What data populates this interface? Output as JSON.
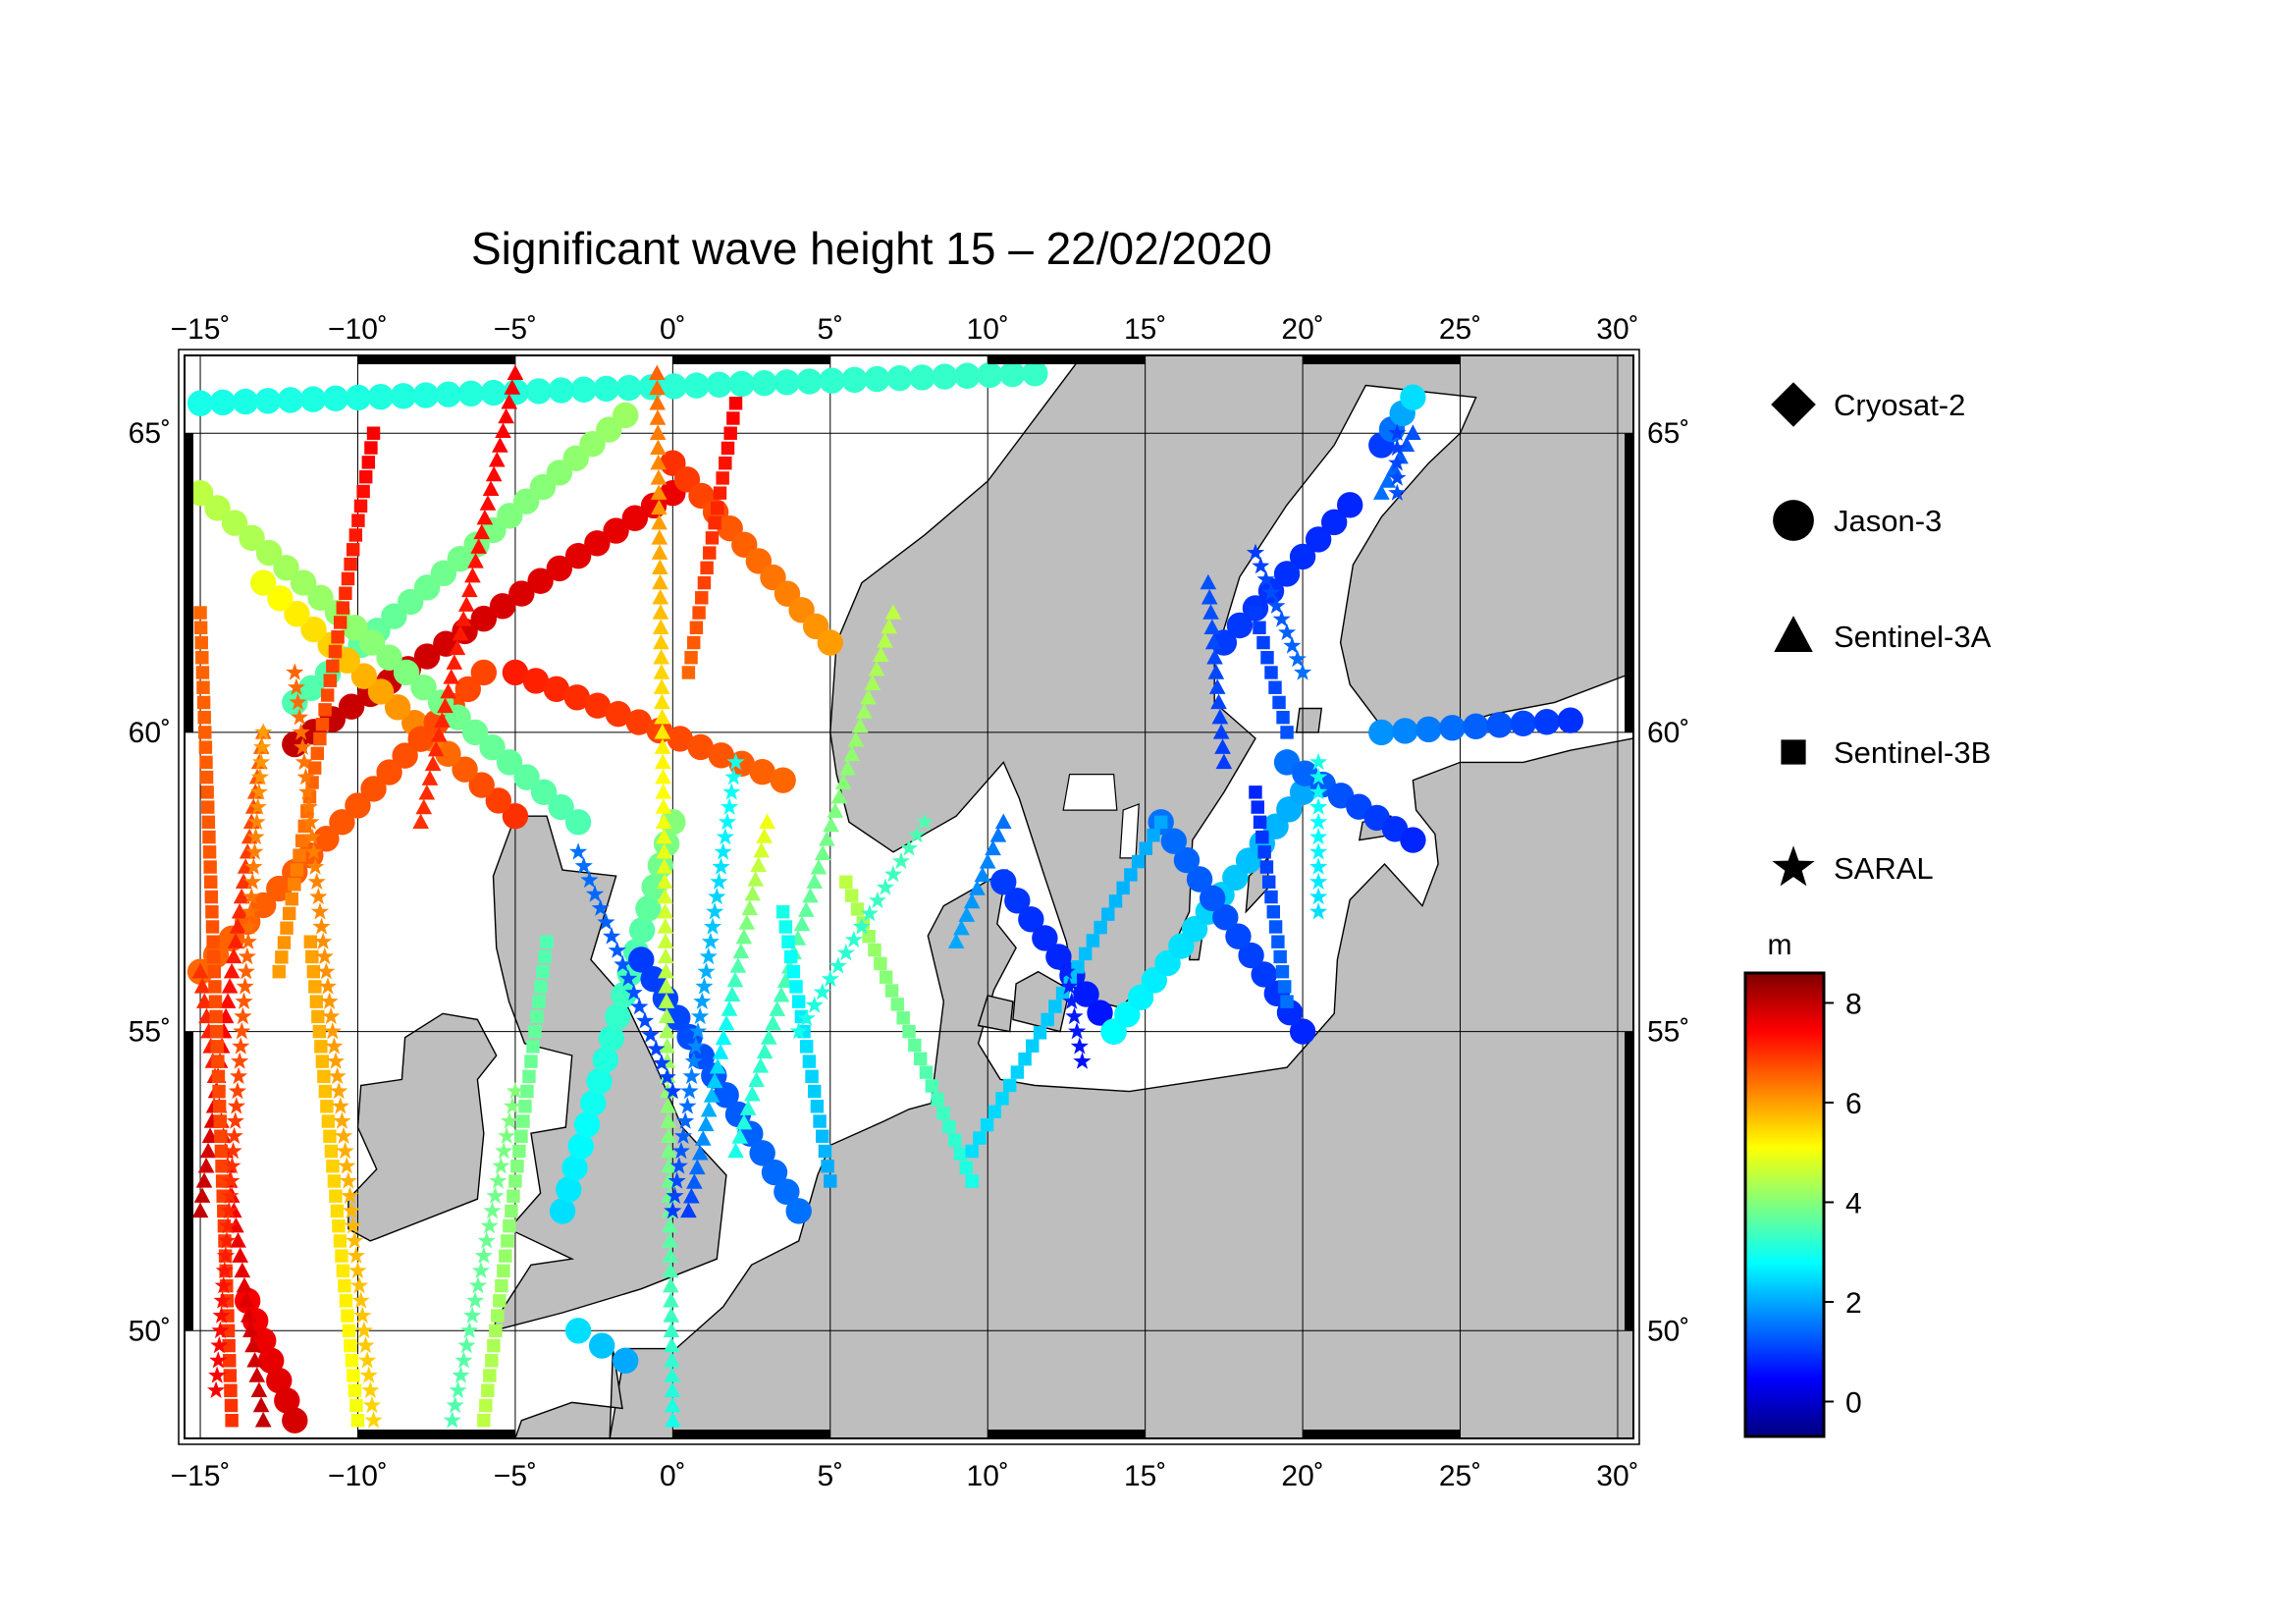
{
  "title": "Significant wave height 15 – 22/02/2020",
  "map": {
    "lon_range": [
      -15.5,
      30.5
    ],
    "lat_range": [
      48.2,
      66.3
    ],
    "lon_ticks": [
      -15,
      -10,
      -5,
      0,
      5,
      10,
      15,
      20,
      25,
      30
    ],
    "lat_ticks": [
      50,
      55,
      60,
      65
    ],
    "lon_tick_labels": [
      "−15˚",
      "−10˚",
      "−5˚",
      "0˚",
      "5˚",
      "10˚",
      "15˚",
      "20˚",
      "25˚",
      "30˚"
    ],
    "lat_tick_labels": [
      "50˚",
      "55˚",
      "60˚",
      "65˚"
    ],
    "land_color": "#bebebe",
    "sea_color": "#ffffff",
    "grid": true
  },
  "legend": {
    "satellites": [
      {
        "name": "Cryosat-2",
        "icon": "diamond-icon"
      },
      {
        "name": "Jason-3",
        "icon": "circle-icon"
      },
      {
        "name": "Sentinel-3A",
        "icon": "triangle-icon"
      },
      {
        "name": "Sentinel-3B",
        "icon": "square-icon"
      },
      {
        "name": "SARAL",
        "icon": "star-icon"
      }
    ]
  },
  "colorbar": {
    "unit": "m",
    "min": -0.7,
    "max": 8.6,
    "ticks": [
      0,
      2,
      4,
      6,
      8
    ],
    "tick_labels": [
      "0",
      "2",
      "4",
      "6",
      "8"
    ],
    "colormap": [
      "#00007f",
      "#0000ff",
      "#007fff",
      "#00ffff",
      "#7fff7f",
      "#ffff00",
      "#ff7f00",
      "#ff0000",
      "#7f0000"
    ]
  },
  "chart_data": {
    "type": "scatter",
    "title": "Significant wave height 15 – 22/02/2020",
    "xlabel": "",
    "ylabel": "",
    "xlim": [
      -15.5,
      30.5
    ],
    "ylim": [
      48.2,
      66.3
    ],
    "color_unit": "m",
    "series": [
      {
        "name": "Jason-3",
        "marker": "circle",
        "tracks": [
          {
            "from": [
              -12.0,
              59.8
            ],
            "to": [
              0.0,
              64.0
            ],
            "hs": [
              8.0,
              7.6
            ]
          },
          {
            "from": [
              -12.0,
              60.5
            ],
            "to": [
              -1.5,
              65.3
            ],
            "hs": [
              3.5,
              4.2
            ]
          },
          {
            "from": [
              -5.0,
              58.6
            ],
            "to": [
              -13.0,
              62.5
            ],
            "hs": [
              7.0,
              5.0
            ]
          },
          {
            "from": [
              -15.0,
              56.0
            ],
            "to": [
              -6.0,
              61.0
            ],
            "hs": [
              6.5,
              6.8
            ]
          },
          {
            "from": [
              -13.5,
              50.5
            ],
            "to": [
              -12.0,
              48.5
            ],
            "hs": [
              7.5,
              7.8
            ]
          },
          {
            "from": [
              -15.0,
              64.0
            ],
            "to": [
              -3.0,
              58.5
            ],
            "hs": [
              4.5,
              3.5
            ]
          },
          {
            "from": [
              -5.0,
              61.0
            ],
            "to": [
              3.5,
              59.2
            ],
            "hs": [
              7.2,
              6.5
            ]
          },
          {
            "from": [
              -3.5,
              52.0
            ],
            "to": [
              0.0,
              58.5
            ],
            "hs": [
              2.5,
              4.0
            ]
          },
          {
            "from": [
              -3.0,
              50.0
            ],
            "to": [
              -1.5,
              49.5
            ],
            "hs": [
              2.5,
              2.0
            ]
          },
          {
            "from": [
              -1.0,
              56.2
            ],
            "to": [
              4.0,
              52.0
            ],
            "hs": [
              1.0,
              1.5
            ]
          },
          {
            "from": [
              0.0,
              64.5
            ],
            "to": [
              5.0,
              61.5
            ],
            "hs": [
              7.0,
              6.0
            ]
          },
          {
            "from": [
              10.5,
              57.5
            ],
            "to": [
              14.0,
              55.0
            ],
            "hs": [
              1.0,
              0.6
            ]
          },
          {
            "from": [
              14.0,
              55.0
            ],
            "to": [
              20.0,
              59.0
            ],
            "hs": [
              2.8,
              2.0
            ]
          },
          {
            "from": [
              20.0,
              55.0
            ],
            "to": [
              15.5,
              58.5
            ],
            "hs": [
              0.8,
              1.5
            ]
          },
          {
            "from": [
              17.5,
              61.5
            ],
            "to": [
              21.5,
              63.8
            ],
            "hs": [
              1.0,
              0.8
            ]
          },
          {
            "from": [
              22.5,
              60.0
            ],
            "to": [
              28.5,
              60.2
            ],
            "hs": [
              1.8,
              0.9
            ]
          },
          {
            "from": [
              19.5,
              59.5
            ],
            "to": [
              23.5,
              58.2
            ],
            "hs": [
              1.5,
              0.8
            ]
          },
          {
            "from": [
              -15.0,
              65.5
            ],
            "to": [
              11.5,
              66.0
            ],
            "hs": [
              3.0,
              3.3
            ]
          },
          {
            "from": [
              22.5,
              64.8
            ],
            "to": [
              23.5,
              65.6
            ],
            "hs": [
              1.0,
              2.5
            ]
          }
        ]
      },
      {
        "name": "Sentinel-3A",
        "marker": "triangle",
        "tracks": [
          {
            "from": [
              -15.0,
              56.0
            ],
            "to": [
              -13.0,
              48.5
            ],
            "hs": [
              7.0,
              8.0
            ]
          },
          {
            "from": [
              -15.0,
              52.0
            ],
            "to": [
              -13.0,
              60.0
            ],
            "hs": [
              8.0,
              6.5
            ]
          },
          {
            "from": [
              -8.0,
              58.5
            ],
            "to": [
              -5.0,
              66.0
            ],
            "hs": [
              7.0,
              7.5
            ]
          },
          {
            "from": [
              0.0,
              48.5
            ],
            "to": [
              -0.5,
              66.0
            ],
            "hs": [
              3.0,
              6.5
            ]
          },
          {
            "from": [
              3.0,
              58.5
            ],
            "to": [
              0.5,
              52.0
            ],
            "hs": [
              5.0,
              1.0
            ]
          },
          {
            "from": [
              2.0,
              53.0
            ],
            "to": [
              7.0,
              62.0
            ],
            "hs": [
              3.0,
              4.5
            ]
          },
          {
            "from": [
              9.0,
              56.5
            ],
            "to": [
              10.5,
              58.5
            ],
            "hs": [
              2.0,
              1.5
            ]
          },
          {
            "from": [
              17.5,
              59.5
            ],
            "to": [
              17.0,
              62.5
            ],
            "hs": [
              1.0,
              1.2
            ]
          },
          {
            "from": [
              22.5,
              64.0
            ],
            "to": [
              23.5,
              65.0
            ],
            "hs": [
              1.5,
              1.2
            ]
          }
        ]
      },
      {
        "name": "Sentinel-3B",
        "marker": "square",
        "tracks": [
          {
            "from": [
              -15.0,
              62.0
            ],
            "to": [
              -14.0,
              48.5
            ],
            "hs": [
              6.5,
              7.0
            ]
          },
          {
            "from": [
              -11.5,
              56.5
            ],
            "to": [
              -10.0,
              48.5
            ],
            "hs": [
              6.0,
              5.0
            ]
          },
          {
            "from": [
              -12.5,
              56.0
            ],
            "to": [
              -9.5,
              65.0
            ],
            "hs": [
              6.0,
              7.5
            ]
          },
          {
            "from": [
              -6.0,
              48.5
            ],
            "to": [
              -4.0,
              56.5
            ],
            "hs": [
              4.5,
              3.5
            ]
          },
          {
            "from": [
              2.0,
              65.5
            ],
            "to": [
              0.5,
              61.0
            ],
            "hs": [
              7.5,
              6.5
            ]
          },
          {
            "from": [
              3.5,
              57.0
            ],
            "to": [
              5.0,
              52.5
            ],
            "hs": [
              3.0,
              2.0
            ]
          },
          {
            "from": [
              5.5,
              57.5
            ],
            "to": [
              9.5,
              52.5
            ],
            "hs": [
              4.5,
              3.0
            ]
          },
          {
            "from": [
              9.5,
              53.0
            ],
            "to": [
              15.5,
              58.5
            ],
            "hs": [
              2.5,
              2.0
            ]
          },
          {
            "from": [
              18.5,
              59.0
            ],
            "to": [
              19.5,
              55.5
            ],
            "hs": [
              0.8,
              1.5
            ]
          },
          {
            "from": [
              18.5,
              62.0
            ],
            "to": [
              19.5,
              60.0
            ],
            "hs": [
              1.0,
              1.2
            ]
          }
        ]
      },
      {
        "name": "SARAL",
        "marker": "star",
        "tracks": [
          {
            "from": [
              -14.5,
              49.0
            ],
            "to": [
              -13.0,
              60.0
            ],
            "hs": [
              7.5,
              6.0
            ]
          },
          {
            "from": [
              -9.5,
              48.5
            ],
            "to": [
              -12.0,
              61.0
            ],
            "hs": [
              5.5,
              6.5
            ]
          },
          {
            "from": [
              -7.0,
              48.5
            ],
            "to": [
              -5.0,
              54.0
            ],
            "hs": [
              3.5,
              4.0
            ]
          },
          {
            "from": [
              -3.0,
              58.0
            ],
            "to": [
              0.0,
              54.0
            ],
            "hs": [
              1.5,
              1.0
            ]
          },
          {
            "from": [
              0.0,
              52.0
            ],
            "to": [
              2.0,
              59.5
            ],
            "hs": [
              1.0,
              3.0
            ]
          },
          {
            "from": [
              4.0,
              55.0
            ],
            "to": [
              8.0,
              58.5
            ],
            "hs": [
              3.0,
              3.5
            ]
          },
          {
            "from": [
              12.5,
              56.0
            ],
            "to": [
              13.0,
              54.5
            ],
            "hs": [
              0.8,
              0.6
            ]
          },
          {
            "from": [
              18.5,
              63.0
            ],
            "to": [
              20.0,
              61.0
            ],
            "hs": [
              1.0,
              1.5
            ]
          },
          {
            "from": [
              20.5,
              59.5
            ],
            "to": [
              20.5,
              57.0
            ],
            "hs": [
              3.0,
              2.5
            ]
          },
          {
            "from": [
              23.0,
              65.0
            ],
            "to": [
              23.0,
              64.0
            ],
            "hs": [
              1.0,
              1.2
            ]
          }
        ]
      }
    ]
  }
}
